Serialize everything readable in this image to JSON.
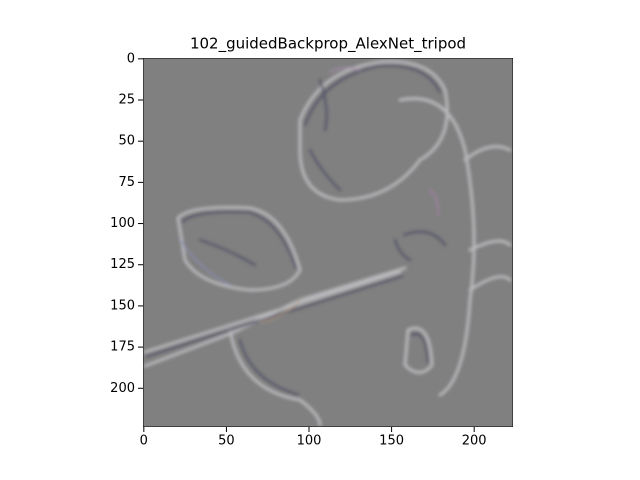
{
  "chart_data": {
    "type": "image",
    "title": "102_guidedBackprop_AlexNet_tripod",
    "xlim": [
      -0.5,
      223.5
    ],
    "ylim": [
      223.5,
      -0.5
    ],
    "xticks": [
      0,
      50,
      100,
      150,
      200
    ],
    "yticks": [
      0,
      25,
      50,
      75,
      100,
      125,
      150,
      175,
      200
    ]
  }
}
